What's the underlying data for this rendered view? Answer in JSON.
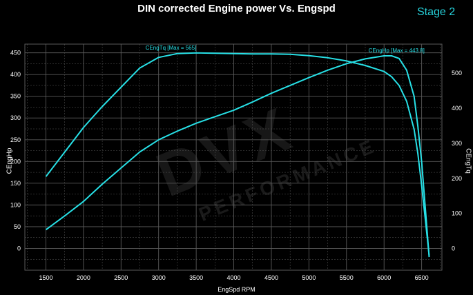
{
  "title": "DIN corrected Engine power Vs. Engspd",
  "badge": "Stage 2",
  "watermark": "DVX PERFORMANCE",
  "colors": {
    "background": "#000000",
    "grid": "#5a5a5a",
    "curve": "#27e0e6",
    "badge": "#26d3dc"
  },
  "chart_data": {
    "type": "line",
    "xlabel": "EngSpd RPM",
    "ylabel_left": "CEngHp",
    "ylabel_right": "CEngTq",
    "xlim": [
      1220,
      6770
    ],
    "ylim_left": [
      -50,
      470
    ],
    "ylim_right": [
      -62,
      583
    ],
    "x_ticks": [
      1500,
      2000,
      2500,
      3000,
      3500,
      4000,
      4500,
      5000,
      5500,
      6000,
      6500
    ],
    "y_ticks_left": [
      0,
      50,
      100,
      150,
      200,
      250,
      300,
      350,
      400,
      450
    ],
    "y_ticks_right": [
      0,
      100,
      200,
      300,
      400,
      500
    ],
    "grid": true,
    "series": [
      {
        "name": "CEngTq",
        "axis": "right",
        "annotation": "CEngTq [Max = 565]",
        "x": [
          1500,
          1750,
          2000,
          2250,
          2500,
          2750,
          3000,
          3250,
          3500,
          3750,
          4000,
          4250,
          4500,
          4750,
          5000,
          5250,
          5500,
          5750,
          6000,
          6100,
          6200,
          6300,
          6400,
          6450,
          6500,
          6550,
          6600
        ],
        "y": [
          205,
          275,
          345,
          405,
          460,
          515,
          545,
          556,
          558,
          557,
          556,
          555,
          555,
          554,
          550,
          544,
          535,
          522,
          505,
          490,
          465,
          420,
          340,
          270,
          180,
          80,
          -20
        ]
      },
      {
        "name": "CEngHp",
        "axis": "left",
        "annotation": "CEngHp [Max = 443.8]",
        "x": [
          1500,
          1750,
          2000,
          2250,
          2500,
          2750,
          3000,
          3250,
          3500,
          3750,
          4000,
          4250,
          4500,
          4750,
          5000,
          5250,
          5500,
          5750,
          6000,
          6100,
          6200,
          6300,
          6400,
          6450,
          6500,
          6550,
          6600
        ],
        "y": [
          43,
          75,
          108,
          148,
          185,
          222,
          250,
          270,
          288,
          303,
          318,
          337,
          357,
          375,
          393,
          410,
          425,
          436,
          443,
          443,
          437,
          410,
          350,
          280,
          200,
          90,
          -20
        ]
      }
    ]
  }
}
